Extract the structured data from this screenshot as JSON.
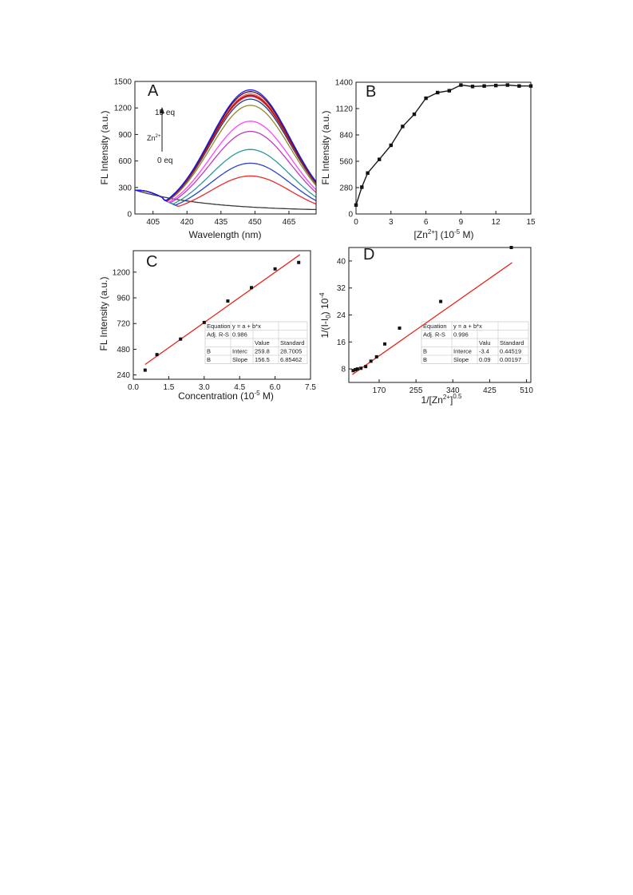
{
  "colors": {
    "axis": "#1a1a1a",
    "fit_line": "#e8261f",
    "markers": "#111111",
    "table_border": "#bdbdbd",
    "spectra": [
      "#3b3b3b",
      "#ee2a2a",
      "#2c45c9",
      "#2f9a9a",
      "#c23bbf",
      "#ff44ff",
      "#938a28",
      "#1c3e8a",
      "#1f1fb0",
      "#ff6666",
      "#ff2a2a",
      "#9c1a1a",
      "#550a0a",
      "#1a1aff"
    ]
  },
  "panelA": {
    "letter": "A",
    "xlabel": "Wavelength (nm)",
    "ylabel": "FL Intensity (a.u.)",
    "annotation": {
      "top": "15 eq",
      "ion_base": "Zn",
      "ion_sup": "2+",
      "bottom": "0 eq"
    }
  },
  "panelB": {
    "letter": "B",
    "xlabel": {
      "pre": "[Zn",
      "sup1": "2+",
      "mid": "] (10",
      "sup2": "-5",
      "post": " M)"
    },
    "ylabel": "FL Intensity (a.u.)"
  },
  "panelC": {
    "letter": "C",
    "xlabel": {
      "pre": "Concentration (10",
      "sup": "-5",
      "post": " M)"
    },
    "ylabel": "FL Intensity (a.u.)",
    "table": [
      [
        "Equation",
        "y = a + b*x",
        ""
      ],
      [
        "Adj. R-S",
        "0.986",
        "",
        ""
      ],
      [
        "",
        "",
        "Value",
        "Standard"
      ],
      [
        "B",
        "Interc",
        "259.8",
        "28.7005"
      ],
      [
        "B",
        "Slope",
        "156.5",
        "6.85462"
      ]
    ]
  },
  "panelD": {
    "letter": "D",
    "xlabel": {
      "pre": "1/[Zn",
      "sup": "2+",
      "mid": "]",
      "sup2": "0.5",
      "post": ""
    },
    "ylabel": {
      "pre": "1/(I-I",
      "sub": "0",
      "mid": ") 10",
      "sup": "-4",
      "post": ""
    },
    "table": [
      [
        "Equation",
        "y = a + b*x",
        ""
      ],
      [
        "Adj. R-S",
        "0.996",
        "",
        ""
      ],
      [
        "",
        "",
        "Valu",
        "Standard"
      ],
      [
        "B",
        "Interce",
        "-3.4",
        "0.44519"
      ],
      [
        "B",
        "Slope",
        "0.09",
        "0.00197"
      ]
    ]
  },
  "chart_data": [
    {
      "panel": "A",
      "type": "line",
      "title": "",
      "xlabel": "Wavelength (nm)",
      "ylabel": "FL Intensity (a.u.)",
      "xlim": [
        397,
        477
      ],
      "ylim": [
        0,
        1500
      ],
      "xticks": [
        405,
        420,
        435,
        450,
        465
      ],
      "yticks": [
        0,
        300,
        600,
        900,
        1200,
        1500
      ],
      "grid": false,
      "curve_model": "baseline spectrum decays from 270 to 30; other spectra rise to a peak near 448 nm",
      "series": [
        {
          "peak": 0
        },
        {
          "peak": 430
        },
        {
          "peak": 575
        },
        {
          "peak": 730
        },
        {
          "peak": 935
        },
        {
          "peak": 1050
        },
        {
          "peak": 1230
        },
        {
          "peak": 1300
        },
        {
          "peak": 1340
        },
        {
          "peak": 1360
        },
        {
          "peak": 1330
        },
        {
          "peak": 1345
        },
        {
          "peak": 1385
        },
        {
          "peak": 1405
        }
      ]
    },
    {
      "panel": "B",
      "type": "line",
      "title": "",
      "xlabel": "[Zn2+] (10-5 M)",
      "ylabel": "FL Intensity (a.u.)",
      "xlim": [
        0,
        15
      ],
      "ylim": [
        0,
        1400
      ],
      "xticks": [
        0,
        3,
        6,
        9,
        12,
        15
      ],
      "yticks": [
        0,
        280,
        560,
        840,
        1120,
        1400
      ],
      "grid": false,
      "x": [
        0,
        0.5,
        1,
        2,
        3,
        4,
        5,
        6,
        7,
        8,
        9,
        10,
        11,
        12,
        13,
        14,
        15
      ],
      "values": [
        95,
        285,
        435,
        580,
        730,
        930,
        1060,
        1230,
        1290,
        1310,
        1370,
        1355,
        1360,
        1365,
        1370,
        1360,
        1360
      ]
    },
    {
      "panel": "C",
      "type": "scatter",
      "title": "",
      "xlabel": "Concentration (10-5 M)",
      "ylabel": "FL Intensity (a.u.)",
      "xlim": [
        0,
        7.5
      ],
      "ylim": [
        200,
        1400
      ],
      "xticks": [
        0.0,
        1.5,
        3.0,
        4.5,
        6.0,
        7.5
      ],
      "yticks": [
        240,
        480,
        720,
        960,
        1200
      ],
      "grid": false,
      "x": [
        0.5,
        1,
        2,
        3,
        4,
        5,
        6,
        7
      ],
      "values": [
        285,
        430,
        575,
        730,
        930,
        1055,
        1230,
        1290
      ],
      "fit": {
        "intercept": 259.8,
        "slope": 156.5,
        "x_range": [
          0.5,
          7.05
        ]
      }
    },
    {
      "panel": "D",
      "type": "scatter",
      "title": "",
      "xlabel": "1/[Zn2+]0.5",
      "ylabel": "1/(I-I0) 10-4",
      "xlim": [
        100,
        520
      ],
      "ylim": [
        4,
        44
      ],
      "xticks": [
        170,
        255,
        340,
        425,
        510
      ],
      "yticks": [
        8,
        16,
        24,
        32,
        40
      ],
      "grid": false,
      "x": [
        110,
        115,
        120,
        128,
        139,
        151,
        164,
        183,
        217,
        312,
        475
      ],
      "values": [
        7.5,
        7.8,
        8.0,
        8.2,
        8.7,
        10.3,
        11.6,
        15.4,
        20.1,
        28.0,
        44.0
      ],
      "fit": {
        "intercept": -3.4,
        "slope": 0.09,
        "x_range": [
          108,
          477
        ]
      }
    }
  ]
}
